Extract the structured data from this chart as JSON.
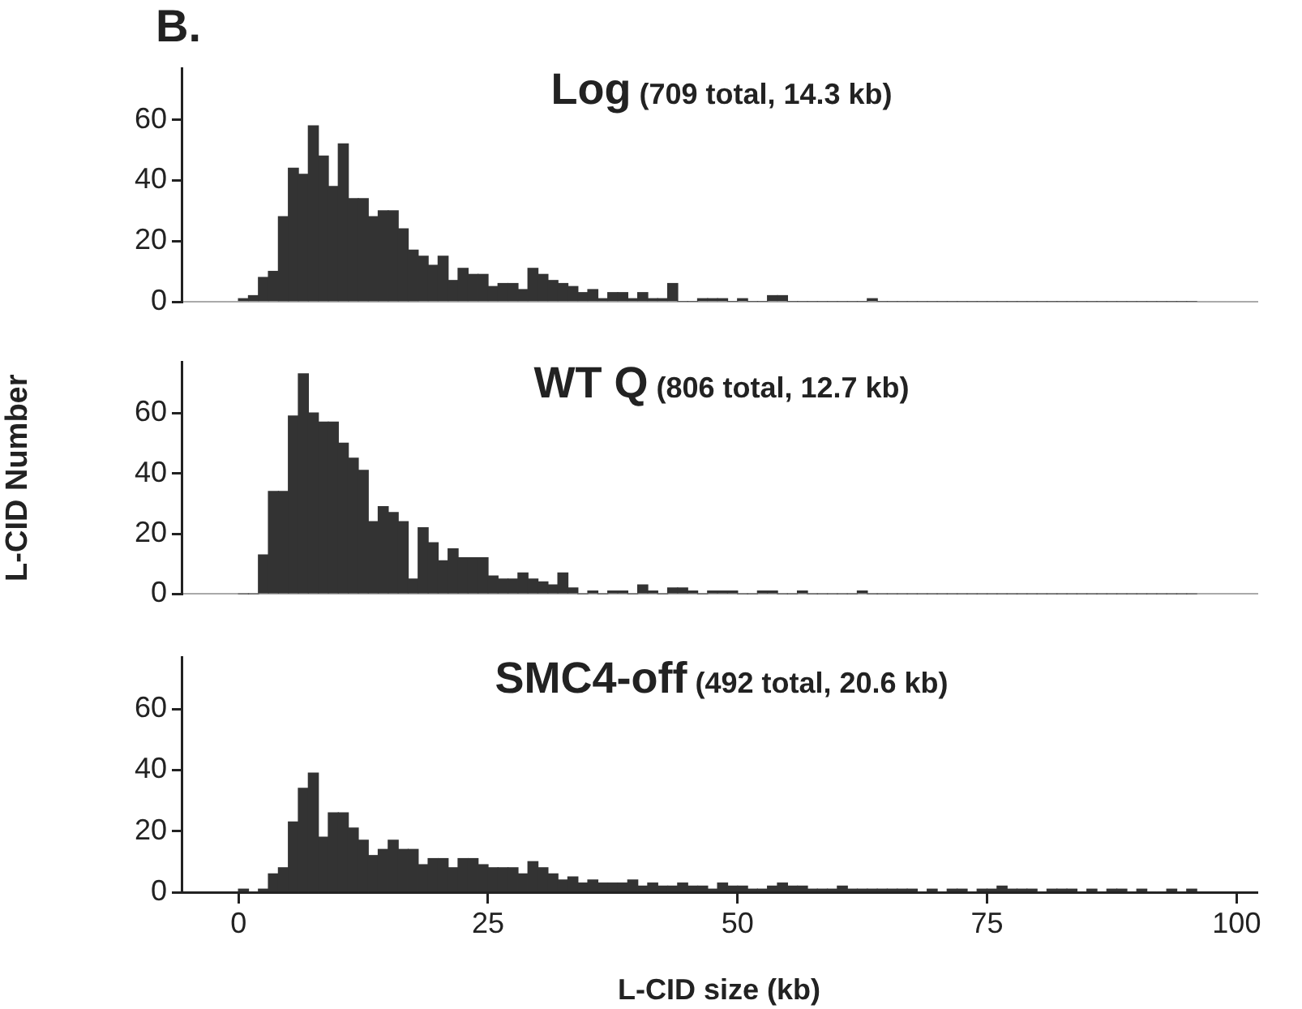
{
  "chart_data": [
    {
      "type": "histogram",
      "title": "Log",
      "subtitle": "(709 total, 14.3 kb)",
      "annotations": [
        "B."
      ],
      "color": "#333333",
      "bins": [
        0,
        1,
        2,
        3,
        4,
        5,
        6,
        7,
        8,
        9,
        10,
        11,
        12,
        13,
        14,
        15,
        16,
        17,
        18,
        19,
        20,
        21,
        22,
        23,
        24,
        25,
        26,
        27,
        28,
        29,
        30,
        31,
        32,
        33,
        34,
        35,
        36,
        37,
        38,
        39,
        40,
        41,
        42,
        43,
        44,
        45,
        46,
        47,
        48,
        49,
        50,
        51,
        52,
        53,
        54,
        55,
        56,
        57,
        58,
        59,
        60,
        61,
        62,
        63,
        64,
        65,
        66,
        67,
        68,
        69,
        70,
        71,
        72,
        73,
        74,
        75,
        76,
        77,
        78,
        79,
        80,
        81,
        82,
        83,
        84,
        85,
        86,
        87,
        88,
        89,
        90,
        91,
        92,
        93,
        94,
        95,
        96
      ],
      "values": [
        1,
        2,
        8,
        10,
        28,
        44,
        42,
        58,
        48,
        38,
        52,
        34,
        34,
        28,
        30,
        30,
        24,
        17,
        15,
        12,
        15,
        7,
        11,
        9,
        9,
        5,
        6,
        6,
        4,
        11,
        9,
        7,
        6,
        5,
        3,
        4,
        1,
        3,
        3,
        1,
        3,
        1,
        1,
        6,
        0,
        0,
        1,
        1,
        1,
        0,
        1,
        0,
        0,
        2,
        2,
        0,
        0,
        0,
        0,
        0,
        0,
        0,
        0,
        1,
        0,
        0,
        0,
        0,
        0,
        0,
        0,
        0,
        0,
        0,
        0,
        0,
        0,
        0,
        0,
        0,
        0,
        0,
        0,
        0,
        0,
        0,
        0,
        0,
        0,
        0,
        0,
        0,
        0,
        0,
        0,
        0
      ],
      "xlim": [
        -5.7,
        102
      ],
      "ylim": [
        0,
        77
      ],
      "yticks": [
        0,
        20,
        40,
        60
      ],
      "tick_labels": "y"
    },
    {
      "type": "histogram",
      "title": "WT Q",
      "subtitle": "(806 total, 12.7 kb)",
      "ylabel": "L-CID Number",
      "color": "#333333",
      "bins": [
        0,
        1,
        2,
        3,
        4,
        5,
        6,
        7,
        8,
        9,
        10,
        11,
        12,
        13,
        14,
        15,
        16,
        17,
        18,
        19,
        20,
        21,
        22,
        23,
        24,
        25,
        26,
        27,
        28,
        29,
        30,
        31,
        32,
        33,
        34,
        35,
        36,
        37,
        38,
        39,
        40,
        41,
        42,
        43,
        44,
        45,
        46,
        47,
        48,
        49,
        50,
        51,
        52,
        53,
        54,
        55,
        56,
        57,
        58,
        59,
        60,
        61,
        62,
        63,
        64,
        65,
        66,
        67,
        68,
        69,
        70,
        71,
        72,
        73,
        74,
        75,
        76,
        77,
        78,
        79,
        80,
        81,
        82,
        83,
        84,
        85,
        86,
        87,
        88,
        89,
        90,
        91,
        92,
        93,
        94,
        95,
        96
      ],
      "values": [
        0,
        0,
        13,
        34,
        34,
        59,
        73,
        60,
        57,
        57,
        50,
        45,
        41,
        24,
        29,
        27,
        24,
        5,
        22,
        17,
        11,
        15,
        12,
        12,
        12,
        6,
        5,
        5,
        7,
        5,
        4,
        3,
        7,
        2,
        0,
        1,
        0,
        1,
        1,
        0,
        3,
        1,
        0,
        2,
        2,
        1,
        0,
        1,
        1,
        1,
        0,
        0,
        1,
        1,
        0,
        0,
        1,
        0,
        0,
        0,
        0,
        0,
        1,
        0,
        0,
        0,
        0,
        0,
        0,
        0,
        0,
        0,
        0,
        0,
        0,
        0,
        0,
        0,
        0,
        0,
        0,
        0,
        0,
        0,
        0,
        0,
        0,
        0,
        0,
        0,
        0,
        0,
        0,
        0,
        0,
        0
      ],
      "xlim": [
        -5.7,
        102
      ],
      "ylim": [
        0,
        77
      ],
      "yticks": [
        0,
        20,
        40,
        60
      ],
      "tick_labels": "y"
    },
    {
      "type": "histogram",
      "title": "SMC4-off",
      "subtitle": "(492 total, 20.6 kb)",
      "xlabel": "L-CID size (kb)",
      "color": "#333333",
      "bins": [
        0,
        1,
        2,
        3,
        4,
        5,
        6,
        7,
        8,
        9,
        10,
        11,
        12,
        13,
        14,
        15,
        16,
        17,
        18,
        19,
        20,
        21,
        22,
        23,
        24,
        25,
        26,
        27,
        28,
        29,
        30,
        31,
        32,
        33,
        34,
        35,
        36,
        37,
        38,
        39,
        40,
        41,
        42,
        43,
        44,
        45,
        46,
        47,
        48,
        49,
        50,
        51,
        52,
        53,
        54,
        55,
        56,
        57,
        58,
        59,
        60,
        61,
        62,
        63,
        64,
        65,
        66,
        67,
        68,
        69,
        70,
        71,
        72,
        73,
        74,
        75,
        76,
        77,
        78,
        79,
        80,
        81,
        82,
        83,
        84,
        85,
        86,
        87,
        88,
        89,
        90,
        91,
        92,
        93,
        94,
        95,
        96
      ],
      "values": [
        1,
        0,
        1,
        6,
        8,
        23,
        34,
        39,
        18,
        26,
        26,
        21,
        17,
        12,
        14,
        17,
        14,
        14,
        9,
        11,
        11,
        8,
        11,
        11,
        9,
        8,
        8,
        8,
        6,
        10,
        8,
        6,
        4,
        5,
        3,
        4,
        3,
        3,
        3,
        4,
        2,
        3,
        2,
        2,
        3,
        2,
        2,
        1,
        3,
        2,
        2,
        1,
        1,
        2,
        3,
        2,
        2,
        1,
        1,
        1,
        2,
        1,
        1,
        1,
        1,
        1,
        1,
        1,
        0,
        1,
        0,
        1,
        1,
        0,
        1,
        1,
        2,
        1,
        1,
        1,
        0,
        1,
        1,
        1,
        0,
        1,
        0,
        1,
        1,
        0,
        1,
        0,
        0,
        1,
        0,
        1
      ],
      "xlim": [
        -5.7,
        102
      ],
      "xticks": [
        0,
        25,
        50,
        75,
        100
      ],
      "ylim": [
        0,
        77
      ],
      "yticks": [
        0,
        20,
        40,
        60
      ]
    }
  ]
}
